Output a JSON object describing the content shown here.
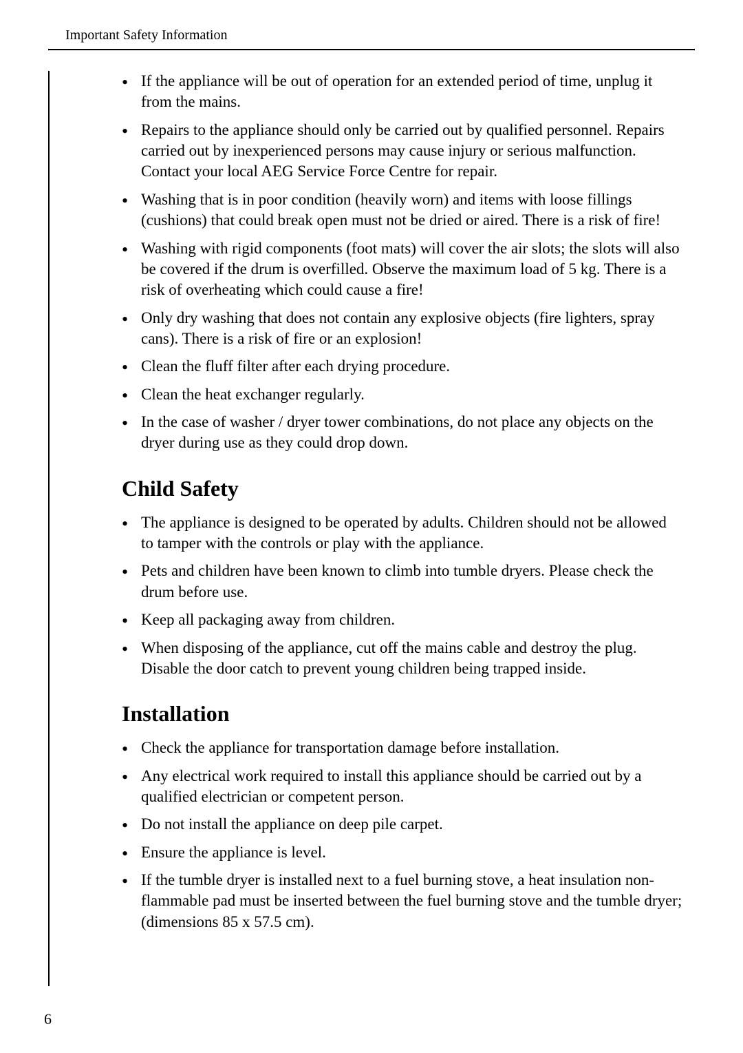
{
  "header": {
    "title": "Important Safety Information"
  },
  "sections": {
    "general": {
      "items": [
        "If the appliance will be out of operation for an extended period of time, unplug it from the mains.",
        "Repairs to the appliance should only be carried out by qualified personnel. Repairs carried out by inexperienced persons may cause injury or serious malfunction. Contact your local AEG Service Force Centre for repair.",
        "Washing that is in poor condition (heavily worn) and items with loose fillings (cushions) that could break open must not be dried or aired. There is a risk of fire!",
        "Washing with rigid components (foot mats) will cover the air slots; the slots will also be covered if the drum is overfilled. Observe the maximum load of 5 kg. There is a risk of overheating which could cause a fire!",
        "Only dry washing that does not contain any explosive objects (fire lighters, spray cans). There is a risk of fire or an explosion!",
        "Clean the fluff filter after each drying procedure.",
        "Clean the heat exchanger regularly.",
        "In the case of washer / dryer tower combinations, do not place any objects on the dryer during use as they could drop down."
      ]
    },
    "childSafety": {
      "heading": "Child Safety",
      "items": [
        "The appliance is designed to be operated by adults. Children should not be allowed to tamper with the controls or play with the appliance.",
        "Pets and children have been known to climb into tumble dryers. Please check the drum before use.",
        "Keep all packaging away from children.",
        "When disposing of the appliance, cut off the mains cable and destroy the plug. Disable the door catch to prevent young children being trapped inside."
      ]
    },
    "installation": {
      "heading": "Installation",
      "items": [
        "Check the appliance for transportation damage before installation.",
        "Any electrical work required to install this appliance should be carried out by a qualified electrician or competent person.",
        "Do not install the appliance on deep pile carpet.",
        "Ensure the appliance is level.",
        "If the tumble dryer is installed next to a fuel burning stove, a heat insulation non-flammable pad must be inserted between the fuel burning stove and the tumble dryer; (dimensions 85 x 57.5 cm)."
      ]
    }
  },
  "pageNumber": "6"
}
